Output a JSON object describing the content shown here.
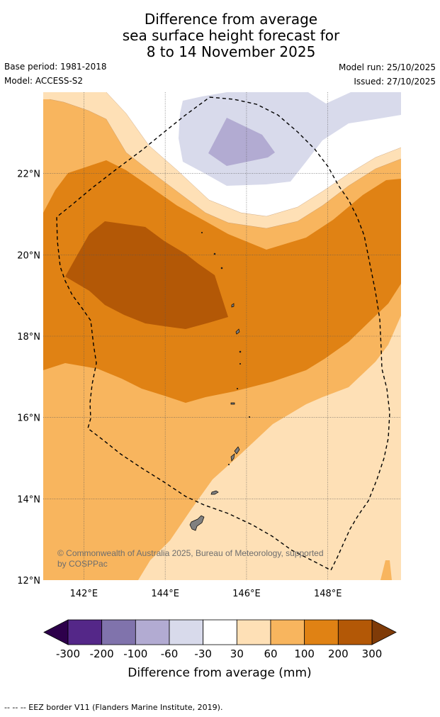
{
  "title": {
    "line1": "Difference from average",
    "line2": "sea surface height forecast for",
    "line3": "8 to 14 November 2025"
  },
  "meta": {
    "base_period": "Base period: 1981-2018",
    "model": "Model: ACCESS-S2",
    "model_run": "Model run: 25/10/2025",
    "issued": "Issued: 27/10/2025"
  },
  "map": {
    "lon_range": [
      141.0,
      149.8
    ],
    "lat_range": [
      12.0,
      24.0
    ],
    "lat_ticks": [
      22,
      20,
      18,
      16,
      14,
      12
    ],
    "lat_labels": [
      "22°N",
      "20°N",
      "18°N",
      "16°N",
      "14°N",
      "12°N"
    ],
    "lon_ticks": [
      142,
      144,
      146,
      148
    ],
    "lon_labels": [
      "142°E",
      "144°E",
      "146°E",
      "148°E"
    ],
    "copyright": "© Commonwealth of Australia 2025, Bureau of Meteorology, supported by COSPPac",
    "copyright_line1": "© Commonwealth of Australia 2025, Bureau of Meteorology, supported",
    "copyright_line2": "by COSPPac"
  },
  "colorbar": {
    "tick_labels": [
      "-300",
      "-200",
      "-100",
      "-60",
      "-30",
      "30",
      "60",
      "100",
      "200",
      "300"
    ],
    "label": "Difference from average (mm)",
    "colors": {
      "lt_-300": "#2d004b",
      "-300_-200": "#542788",
      "-200_-100": "#8073ac",
      "-100_-60": "#b2abd2",
      "-60_-30": "#d8daeb",
      "-30_30": "#ffffff",
      "30_60": "#fee0b6",
      "60_100": "#f8b55e",
      "100_200": "#e08214",
      "200_300": "#b35806",
      "gt_300": "#7f3b08"
    }
  },
  "footnote": "-- -- -- EEZ border V11 (Flanders Marine Institute, 2019)."
}
